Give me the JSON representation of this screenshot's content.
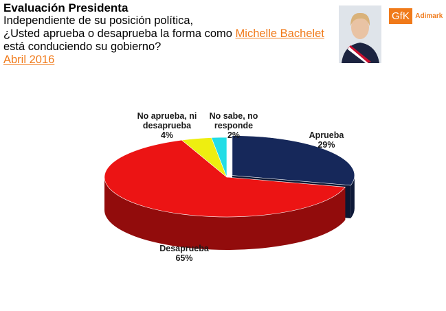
{
  "chart_data": {
    "type": "pie3d",
    "title": "Evaluación Presidenta",
    "subtitle": [
      "Independiente de su posición política,",
      "¿Usted aprueba o desaprueba la forma como ",
      "Michelle Bachelet",
      " está conduciendo su gobierno?",
      "Abril 2016"
    ],
    "categories": [
      "Aprueba",
      "Desaprueba",
      "No aprueba, ni desaprueba",
      "No sabe, no responde"
    ],
    "values": [
      29,
      65,
      4,
      2
    ],
    "value_labels": [
      "29%",
      "65%",
      "4%",
      "2%"
    ],
    "colors": [
      "#16285a",
      "#ec1414",
      "#eeee10",
      "#22dde6"
    ]
  },
  "logo": {
    "brand": "GfK",
    "partner": "Adimark"
  }
}
